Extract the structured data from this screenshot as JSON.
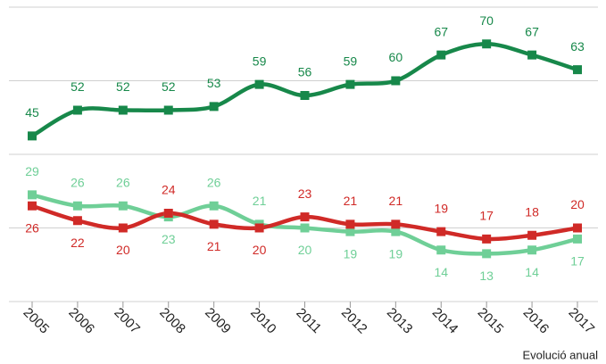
{
  "chart_data": {
    "type": "line",
    "x_label": "Evolució anual",
    "categories": [
      "2005",
      "2006",
      "2007",
      "2008",
      "2009",
      "2010",
      "2011",
      "2012",
      "2013",
      "2014",
      "2015",
      "2016",
      "2017"
    ],
    "series": [
      {
        "color": "#17884a",
        "values": [
          45,
          52,
          52,
          52,
          53,
          59,
          56,
          59,
          60,
          67,
          70,
          67,
          63
        ]
      },
      {
        "color": "#6fcf97",
        "values": [
          29,
          26,
          26,
          23,
          26,
          21,
          20,
          19,
          19,
          14,
          13,
          14,
          17
        ]
      },
      {
        "color": "#d02a27",
        "values": [
          26,
          22,
          20,
          24,
          21,
          20,
          23,
          21,
          21,
          19,
          17,
          18,
          20
        ]
      }
    ],
    "ylim": [
      0,
      80
    ],
    "yticks": [
      0,
      20,
      40,
      60,
      80
    ],
    "grid": true
  }
}
